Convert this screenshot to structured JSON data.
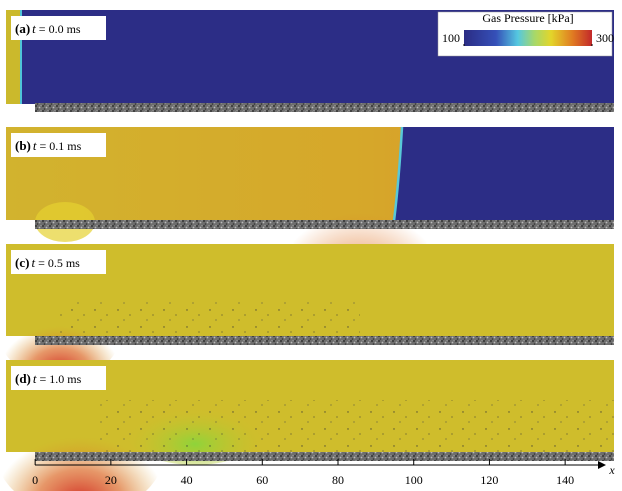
{
  "colorbar": {
    "title": "Gas Pressure [kPa]",
    "lim": [
      100,
      300
    ],
    "ticks": [
      100,
      300
    ]
  },
  "panels": [
    {
      "label": "(a)",
      "symbol": "t",
      "value": "= 0.0 ms"
    },
    {
      "label": "(b)",
      "symbol": "t",
      "value": "= 0.1 ms"
    },
    {
      "label": "(c)",
      "symbol": "t",
      "value": "= 0.5 ms"
    },
    {
      "label": "(d)",
      "symbol": "t",
      "value": "= 1.0 ms"
    }
  ],
  "x_axis": {
    "label": "x",
    "xlim": [
      -7.7,
      150
    ],
    "xticks": [
      0,
      20,
      40,
      60,
      80,
      100,
      120,
      140
    ]
  }
}
